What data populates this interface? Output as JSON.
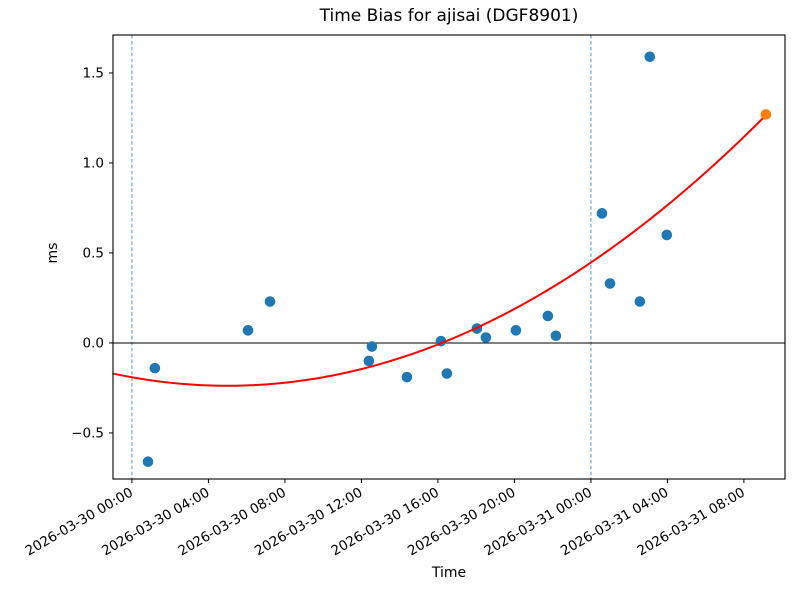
{
  "window": {
    "background": "#ffffff"
  },
  "chart_data": {
    "type": "scatter",
    "title": "Time Bias for ajisai (DGF8901)",
    "xlabel": "Time",
    "ylabel": "ms",
    "grid": false,
    "legend": null,
    "x_axis": {
      "unit": "datetime",
      "origin": "2026-03-30 00:00",
      "lim_hours": [
        -0.99,
        34.15
      ],
      "tick_hours": [
        0,
        4,
        8,
        12,
        16,
        20,
        24,
        28,
        32
      ],
      "tick_labels": [
        "2026-03-30 00:00",
        "2026-03-30 04:00",
        "2026-03-30 08:00",
        "2026-03-30 12:00",
        "2026-03-30 16:00",
        "2026-03-30 20:00",
        "2026-03-31 00:00",
        "2026-03-31 04:00",
        "2026-03-31 08:00"
      ],
      "tick_rotation_deg": 30
    },
    "y_axis": {
      "lim": [
        -0.756,
        1.711
      ],
      "tick_values": [
        -0.5,
        0.0,
        0.5,
        1.0,
        1.5
      ],
      "tick_labels": [
        "−0.5",
        "0.0",
        "0.5",
        "1.0",
        "1.5"
      ]
    },
    "series": [
      {
        "name": "bias-observations",
        "type": "scatter",
        "color": "#1f77b4",
        "marker_radius": 5.3,
        "points": [
          {
            "time": "2026-03-30 00:50",
            "t_hours": 0.84,
            "ms": -0.66
          },
          {
            "time": "2026-03-30 01:12",
            "t_hours": 1.2,
            "ms": -0.14
          },
          {
            "time": "2026-03-30 06:04",
            "t_hours": 6.07,
            "ms": 0.07
          },
          {
            "time": "2026-03-30 07:13",
            "t_hours": 7.22,
            "ms": 0.23
          },
          {
            "time": "2026-03-30 12:23",
            "t_hours": 12.39,
            "ms": -0.1
          },
          {
            "time": "2026-03-30 12:33",
            "t_hours": 12.55,
            "ms": -0.02
          },
          {
            "time": "2026-03-30 14:23",
            "t_hours": 14.38,
            "ms": -0.19
          },
          {
            "time": "2026-03-30 16:10",
            "t_hours": 16.16,
            "ms": 0.01
          },
          {
            "time": "2026-03-30 16:28",
            "t_hours": 16.47,
            "ms": -0.17
          },
          {
            "time": "2026-03-30 18:02",
            "t_hours": 18.04,
            "ms": 0.08
          },
          {
            "time": "2026-03-30 18:31",
            "t_hours": 18.51,
            "ms": 0.03
          },
          {
            "time": "2026-03-30 20:05",
            "t_hours": 20.08,
            "ms": 0.07
          },
          {
            "time": "2026-03-30 21:45",
            "t_hours": 21.75,
            "ms": 0.15
          },
          {
            "time": "2026-03-30 22:10",
            "t_hours": 22.17,
            "ms": 0.04
          },
          {
            "time": "2026-03-31 00:35",
            "t_hours": 24.58,
            "ms": 0.72
          },
          {
            "time": "2026-03-31 01:00",
            "t_hours": 25.0,
            "ms": 0.33
          },
          {
            "time": "2026-03-31 02:34",
            "t_hours": 26.56,
            "ms": 0.23
          },
          {
            "time": "2026-03-31 03:05",
            "t_hours": 27.08,
            "ms": 1.59
          },
          {
            "time": "2026-03-31 03:58",
            "t_hours": 27.97,
            "ms": 0.6
          }
        ]
      },
      {
        "name": "quadratic-fit",
        "type": "line",
        "color": "#ff0000",
        "width": 2,
        "poly_ms_vs_hours": {
          "a": 0.001897,
          "b": -0.01897,
          "c": -0.1907
        },
        "t_range_hours": [
          -0.99,
          33.15
        ]
      },
      {
        "name": "latest-observation",
        "type": "scatter",
        "color": "#ff7f0e",
        "marker_radius": 5.3,
        "points": [
          {
            "time": "2026-03-31 09:09",
            "t_hours": 33.15,
            "ms": 1.27
          }
        ]
      }
    ],
    "annotations": {
      "vlines": {
        "t_hours": [
          0,
          24
        ],
        "color": "#4f97d0",
        "style": "dashed"
      },
      "hline": {
        "ms": 0.0,
        "color": "#000000"
      }
    }
  }
}
